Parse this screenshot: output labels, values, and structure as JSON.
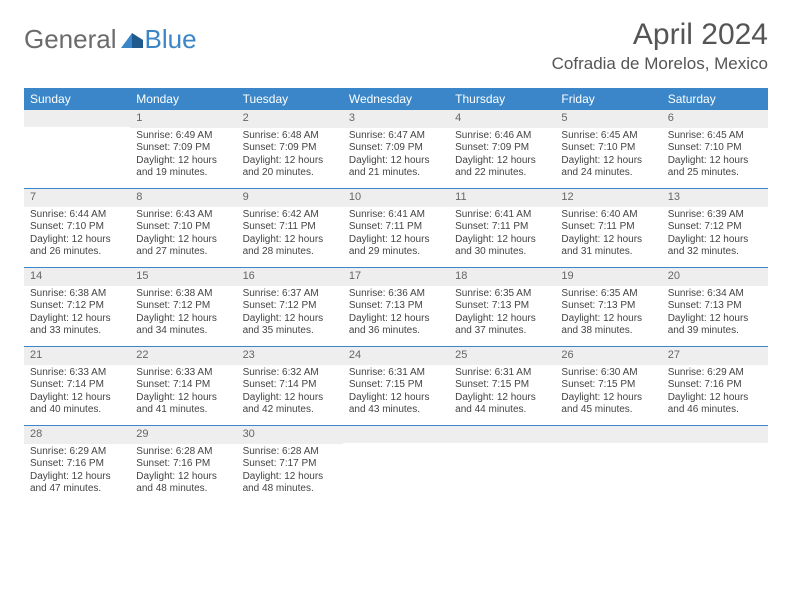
{
  "logo": {
    "text_left": "General",
    "text_right": "Blue"
  },
  "header": {
    "month": "April 2024",
    "location": "Cofradia de Morelos, Mexico"
  },
  "colors": {
    "header_bar": "#3a86c8",
    "daynum_bg": "#eeeeee",
    "text": "#444444",
    "rule": "#3a86c8"
  },
  "weekdays": [
    "Sunday",
    "Monday",
    "Tuesday",
    "Wednesday",
    "Thursday",
    "Friday",
    "Saturday"
  ],
  "weeks": [
    [
      null,
      {
        "n": "1",
        "sr": "Sunrise: 6:49 AM",
        "ss": "Sunset: 7:09 PM",
        "d1": "Daylight: 12 hours",
        "d2": "and 19 minutes."
      },
      {
        "n": "2",
        "sr": "Sunrise: 6:48 AM",
        "ss": "Sunset: 7:09 PM",
        "d1": "Daylight: 12 hours",
        "d2": "and 20 minutes."
      },
      {
        "n": "3",
        "sr": "Sunrise: 6:47 AM",
        "ss": "Sunset: 7:09 PM",
        "d1": "Daylight: 12 hours",
        "d2": "and 21 minutes."
      },
      {
        "n": "4",
        "sr": "Sunrise: 6:46 AM",
        "ss": "Sunset: 7:09 PM",
        "d1": "Daylight: 12 hours",
        "d2": "and 22 minutes."
      },
      {
        "n": "5",
        "sr": "Sunrise: 6:45 AM",
        "ss": "Sunset: 7:10 PM",
        "d1": "Daylight: 12 hours",
        "d2": "and 24 minutes."
      },
      {
        "n": "6",
        "sr": "Sunrise: 6:45 AM",
        "ss": "Sunset: 7:10 PM",
        "d1": "Daylight: 12 hours",
        "d2": "and 25 minutes."
      }
    ],
    [
      {
        "n": "7",
        "sr": "Sunrise: 6:44 AM",
        "ss": "Sunset: 7:10 PM",
        "d1": "Daylight: 12 hours",
        "d2": "and 26 minutes."
      },
      {
        "n": "8",
        "sr": "Sunrise: 6:43 AM",
        "ss": "Sunset: 7:10 PM",
        "d1": "Daylight: 12 hours",
        "d2": "and 27 minutes."
      },
      {
        "n": "9",
        "sr": "Sunrise: 6:42 AM",
        "ss": "Sunset: 7:11 PM",
        "d1": "Daylight: 12 hours",
        "d2": "and 28 minutes."
      },
      {
        "n": "10",
        "sr": "Sunrise: 6:41 AM",
        "ss": "Sunset: 7:11 PM",
        "d1": "Daylight: 12 hours",
        "d2": "and 29 minutes."
      },
      {
        "n": "11",
        "sr": "Sunrise: 6:41 AM",
        "ss": "Sunset: 7:11 PM",
        "d1": "Daylight: 12 hours",
        "d2": "and 30 minutes."
      },
      {
        "n": "12",
        "sr": "Sunrise: 6:40 AM",
        "ss": "Sunset: 7:11 PM",
        "d1": "Daylight: 12 hours",
        "d2": "and 31 minutes."
      },
      {
        "n": "13",
        "sr": "Sunrise: 6:39 AM",
        "ss": "Sunset: 7:12 PM",
        "d1": "Daylight: 12 hours",
        "d2": "and 32 minutes."
      }
    ],
    [
      {
        "n": "14",
        "sr": "Sunrise: 6:38 AM",
        "ss": "Sunset: 7:12 PM",
        "d1": "Daylight: 12 hours",
        "d2": "and 33 minutes."
      },
      {
        "n": "15",
        "sr": "Sunrise: 6:38 AM",
        "ss": "Sunset: 7:12 PM",
        "d1": "Daylight: 12 hours",
        "d2": "and 34 minutes."
      },
      {
        "n": "16",
        "sr": "Sunrise: 6:37 AM",
        "ss": "Sunset: 7:12 PM",
        "d1": "Daylight: 12 hours",
        "d2": "and 35 minutes."
      },
      {
        "n": "17",
        "sr": "Sunrise: 6:36 AM",
        "ss": "Sunset: 7:13 PM",
        "d1": "Daylight: 12 hours",
        "d2": "and 36 minutes."
      },
      {
        "n": "18",
        "sr": "Sunrise: 6:35 AM",
        "ss": "Sunset: 7:13 PM",
        "d1": "Daylight: 12 hours",
        "d2": "and 37 minutes."
      },
      {
        "n": "19",
        "sr": "Sunrise: 6:35 AM",
        "ss": "Sunset: 7:13 PM",
        "d1": "Daylight: 12 hours",
        "d2": "and 38 minutes."
      },
      {
        "n": "20",
        "sr": "Sunrise: 6:34 AM",
        "ss": "Sunset: 7:13 PM",
        "d1": "Daylight: 12 hours",
        "d2": "and 39 minutes."
      }
    ],
    [
      {
        "n": "21",
        "sr": "Sunrise: 6:33 AM",
        "ss": "Sunset: 7:14 PM",
        "d1": "Daylight: 12 hours",
        "d2": "and 40 minutes."
      },
      {
        "n": "22",
        "sr": "Sunrise: 6:33 AM",
        "ss": "Sunset: 7:14 PM",
        "d1": "Daylight: 12 hours",
        "d2": "and 41 minutes."
      },
      {
        "n": "23",
        "sr": "Sunrise: 6:32 AM",
        "ss": "Sunset: 7:14 PM",
        "d1": "Daylight: 12 hours",
        "d2": "and 42 minutes."
      },
      {
        "n": "24",
        "sr": "Sunrise: 6:31 AM",
        "ss": "Sunset: 7:15 PM",
        "d1": "Daylight: 12 hours",
        "d2": "and 43 minutes."
      },
      {
        "n": "25",
        "sr": "Sunrise: 6:31 AM",
        "ss": "Sunset: 7:15 PM",
        "d1": "Daylight: 12 hours",
        "d2": "and 44 minutes."
      },
      {
        "n": "26",
        "sr": "Sunrise: 6:30 AM",
        "ss": "Sunset: 7:15 PM",
        "d1": "Daylight: 12 hours",
        "d2": "and 45 minutes."
      },
      {
        "n": "27",
        "sr": "Sunrise: 6:29 AM",
        "ss": "Sunset: 7:16 PM",
        "d1": "Daylight: 12 hours",
        "d2": "and 46 minutes."
      }
    ],
    [
      {
        "n": "28",
        "sr": "Sunrise: 6:29 AM",
        "ss": "Sunset: 7:16 PM",
        "d1": "Daylight: 12 hours",
        "d2": "and 47 minutes."
      },
      {
        "n": "29",
        "sr": "Sunrise: 6:28 AM",
        "ss": "Sunset: 7:16 PM",
        "d1": "Daylight: 12 hours",
        "d2": "and 48 minutes."
      },
      {
        "n": "30",
        "sr": "Sunrise: 6:28 AM",
        "ss": "Sunset: 7:17 PM",
        "d1": "Daylight: 12 hours",
        "d2": "and 48 minutes."
      },
      null,
      null,
      null,
      null
    ]
  ]
}
